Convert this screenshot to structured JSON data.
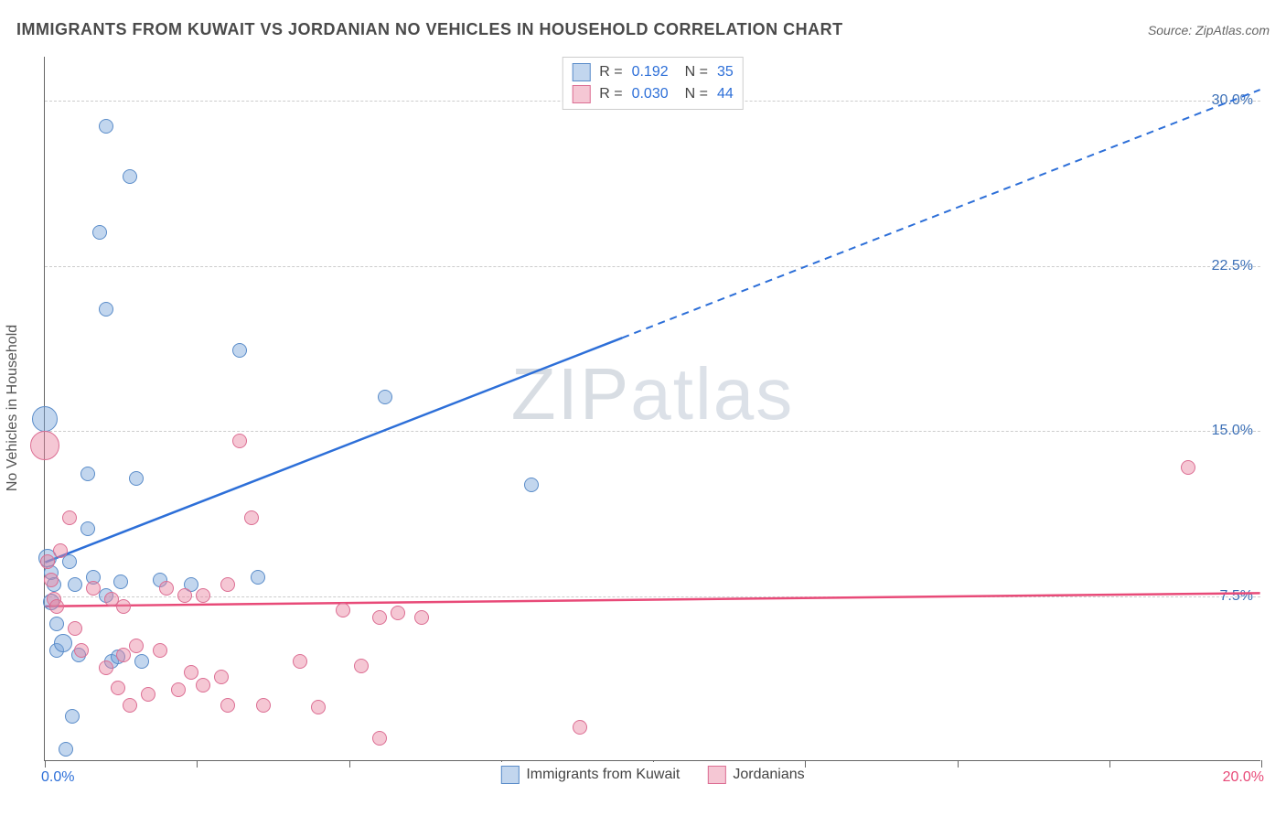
{
  "title": "IMMIGRANTS FROM KUWAIT VS JORDANIAN NO VEHICLES IN HOUSEHOLD CORRELATION CHART",
  "source": "Source: ZipAtlas.com",
  "watermark": "ZIPatlas",
  "y_axis_label": "No Vehicles in Household",
  "chart": {
    "type": "scatter",
    "xlim": [
      0,
      20
    ],
    "ylim": [
      0,
      32
    ],
    "x_tick_step": 2.5,
    "y_gridlines": [
      7.5,
      15.0,
      22.5,
      30.0
    ],
    "y_tick_labels": [
      "7.5%",
      "15.0%",
      "22.5%",
      "30.0%"
    ],
    "x_min_label": "0.0%",
    "x_max_label": "20.0%",
    "x_min_color": "#2d6fd8",
    "x_max_color": "#e84a78",
    "grid_color": "#cccccc",
    "axis_color": "#666666",
    "background": "#ffffff"
  },
  "series": [
    {
      "name": "Immigrants from Kuwait",
      "fill": "rgba(120,165,218,0.45)",
      "stroke": "#5a8cc9",
      "trend_color": "#2d6fd8",
      "R": "0.192",
      "N": "35",
      "trend": {
        "x1": 0,
        "y1": 9.0,
        "x2": 20,
        "y2": 30.5,
        "solid_until_x": 9.5
      },
      "points": [
        {
          "x": 0.0,
          "y": 15.5,
          "r": 14
        },
        {
          "x": 0.05,
          "y": 9.2,
          "r": 10
        },
        {
          "x": 0.1,
          "y": 8.5,
          "r": 8
        },
        {
          "x": 0.1,
          "y": 7.2,
          "r": 9
        },
        {
          "x": 0.15,
          "y": 8.0,
          "r": 8
        },
        {
          "x": 0.2,
          "y": 6.2,
          "r": 8
        },
        {
          "x": 0.2,
          "y": 5.0,
          "r": 8
        },
        {
          "x": 0.3,
          "y": 5.3,
          "r": 10
        },
        {
          "x": 0.35,
          "y": 0.5,
          "r": 8
        },
        {
          "x": 0.4,
          "y": 9.0,
          "r": 8
        },
        {
          "x": 0.45,
          "y": 2.0,
          "r": 8
        },
        {
          "x": 0.5,
          "y": 8.0,
          "r": 8
        },
        {
          "x": 0.55,
          "y": 4.8,
          "r": 8
        },
        {
          "x": 0.7,
          "y": 10.5,
          "r": 8
        },
        {
          "x": 0.7,
          "y": 13.0,
          "r": 8
        },
        {
          "x": 0.8,
          "y": 8.3,
          "r": 8
        },
        {
          "x": 0.9,
          "y": 24.0,
          "r": 8
        },
        {
          "x": 1.0,
          "y": 28.8,
          "r": 8
        },
        {
          "x": 1.0,
          "y": 20.5,
          "r": 8
        },
        {
          "x": 1.0,
          "y": 7.5,
          "r": 8
        },
        {
          "x": 1.1,
          "y": 4.5,
          "r": 8
        },
        {
          "x": 1.2,
          "y": 4.7,
          "r": 8
        },
        {
          "x": 1.25,
          "y": 8.1,
          "r": 8
        },
        {
          "x": 1.4,
          "y": 26.5,
          "r": 8
        },
        {
          "x": 1.5,
          "y": 12.8,
          "r": 8
        },
        {
          "x": 1.6,
          "y": 4.5,
          "r": 8
        },
        {
          "x": 1.9,
          "y": 8.2,
          "r": 8
        },
        {
          "x": 2.4,
          "y": 8.0,
          "r": 8
        },
        {
          "x": 3.2,
          "y": 18.6,
          "r": 8
        },
        {
          "x": 3.5,
          "y": 8.3,
          "r": 8
        },
        {
          "x": 5.6,
          "y": 16.5,
          "r": 8
        },
        {
          "x": 8.0,
          "y": 12.5,
          "r": 8
        }
      ]
    },
    {
      "name": "Jordanians",
      "fill": "rgba(232,130,160,0.45)",
      "stroke": "#dc6e93",
      "trend_color": "#e84a78",
      "R": "0.030",
      "N": "44",
      "trend": {
        "x1": 0,
        "y1": 7.0,
        "x2": 20,
        "y2": 7.6,
        "solid_until_x": 20
      },
      "points": [
        {
          "x": 0.0,
          "y": 14.3,
          "r": 16
        },
        {
          "x": 0.05,
          "y": 9.0,
          "r": 8
        },
        {
          "x": 0.1,
          "y": 8.2,
          "r": 8
        },
        {
          "x": 0.15,
          "y": 7.3,
          "r": 8
        },
        {
          "x": 0.2,
          "y": 7.0,
          "r": 8
        },
        {
          "x": 0.25,
          "y": 9.5,
          "r": 8
        },
        {
          "x": 0.4,
          "y": 11.0,
          "r": 8
        },
        {
          "x": 0.5,
          "y": 6.0,
          "r": 8
        },
        {
          "x": 0.6,
          "y": 5.0,
          "r": 8
        },
        {
          "x": 0.8,
          "y": 7.8,
          "r": 8
        },
        {
          "x": 1.0,
          "y": 4.2,
          "r": 8
        },
        {
          "x": 1.1,
          "y": 7.3,
          "r": 8
        },
        {
          "x": 1.2,
          "y": 3.3,
          "r": 8
        },
        {
          "x": 1.3,
          "y": 4.8,
          "r": 8
        },
        {
          "x": 1.3,
          "y": 7.0,
          "r": 8
        },
        {
          "x": 1.4,
          "y": 2.5,
          "r": 8
        },
        {
          "x": 1.5,
          "y": 5.2,
          "r": 8
        },
        {
          "x": 1.7,
          "y": 3.0,
          "r": 8
        },
        {
          "x": 1.9,
          "y": 5.0,
          "r": 8
        },
        {
          "x": 2.0,
          "y": 7.8,
          "r": 8
        },
        {
          "x": 2.2,
          "y": 3.2,
          "r": 8
        },
        {
          "x": 2.3,
          "y": 7.5,
          "r": 8
        },
        {
          "x": 2.4,
          "y": 4.0,
          "r": 8
        },
        {
          "x": 2.6,
          "y": 7.5,
          "r": 8
        },
        {
          "x": 2.6,
          "y": 3.4,
          "r": 8
        },
        {
          "x": 2.9,
          "y": 3.8,
          "r": 8
        },
        {
          "x": 3.0,
          "y": 8.0,
          "r": 8
        },
        {
          "x": 3.0,
          "y": 2.5,
          "r": 8
        },
        {
          "x": 3.2,
          "y": 14.5,
          "r": 8
        },
        {
          "x": 3.4,
          "y": 11.0,
          "r": 8
        },
        {
          "x": 3.6,
          "y": 2.5,
          "r": 8
        },
        {
          "x": 4.2,
          "y": 4.5,
          "r": 8
        },
        {
          "x": 4.5,
          "y": 2.4,
          "r": 8
        },
        {
          "x": 4.9,
          "y": 6.8,
          "r": 8
        },
        {
          "x": 5.2,
          "y": 4.3,
          "r": 8
        },
        {
          "x": 5.5,
          "y": 6.5,
          "r": 8
        },
        {
          "x": 5.5,
          "y": 1.0,
          "r": 8
        },
        {
          "x": 5.8,
          "y": 6.7,
          "r": 8
        },
        {
          "x": 6.2,
          "y": 6.5,
          "r": 8
        },
        {
          "x": 8.8,
          "y": 1.5,
          "r": 8
        },
        {
          "x": 18.8,
          "y": 13.3,
          "r": 8
        }
      ]
    }
  ],
  "legend": {
    "R_label": "R  =",
    "N_label": "N  ="
  }
}
